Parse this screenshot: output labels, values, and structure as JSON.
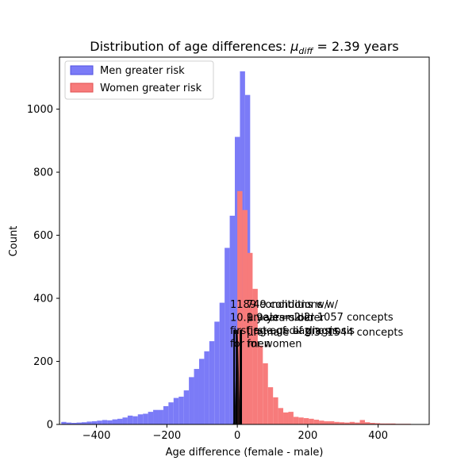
{
  "chart_data": {
    "type": "bar",
    "title_prefix": "Distribution of age differences: ",
    "title_mu": "μ",
    "title_sub": "diff",
    "title_suffix": " = 2.39 years",
    "xlabel": "Age difference (female - male)",
    "ylabel": "Count",
    "xlim": [
      -505,
      545
    ],
    "ylim": [
      0,
      1165
    ],
    "xticks": [
      -400,
      -200,
      0,
      200,
      400
    ],
    "xtick_labels": [
      "−400",
      "−200",
      "0",
      "200",
      "400"
    ],
    "yticks": [
      0,
      200,
      400,
      600,
      800,
      1000
    ],
    "ytick_labels": [
      "0",
      "200",
      "400",
      "600",
      "800",
      "1000"
    ],
    "bin_width": 14.5,
    "grid": false,
    "legend_placement": "upper-left",
    "series": [
      {
        "name": "Men greater risk",
        "color": "#7b7bf7",
        "bins": [
          {
            "x": -500,
            "v": 8
          },
          {
            "x": -485.5,
            "v": 6
          },
          {
            "x": -471,
            "v": 5
          },
          {
            "x": -456.5,
            "v": 6
          },
          {
            "x": -442,
            "v": 7
          },
          {
            "x": -427.5,
            "v": 9
          },
          {
            "x": -413,
            "v": 10
          },
          {
            "x": -398.5,
            "v": 12
          },
          {
            "x": -384,
            "v": 14
          },
          {
            "x": -369.5,
            "v": 13
          },
          {
            "x": -355,
            "v": 16
          },
          {
            "x": -340.5,
            "v": 18
          },
          {
            "x": -326,
            "v": 22
          },
          {
            "x": -311.5,
            "v": 28
          },
          {
            "x": -297,
            "v": 26
          },
          {
            "x": -282.5,
            "v": 32
          },
          {
            "x": -268,
            "v": 34
          },
          {
            "x": -253.5,
            "v": 40
          },
          {
            "x": -239,
            "v": 46
          },
          {
            "x": -224.5,
            "v": 46
          },
          {
            "x": -210,
            "v": 58
          },
          {
            "x": -195.5,
            "v": 70
          },
          {
            "x": -181,
            "v": 84
          },
          {
            "x": -166.5,
            "v": 88
          },
          {
            "x": -152,
            "v": 108
          },
          {
            "x": -137.5,
            "v": 150
          },
          {
            "x": -123,
            "v": 176
          },
          {
            "x": -108.5,
            "v": 208
          },
          {
            "x": -94,
            "v": 232
          },
          {
            "x": -79.5,
            "v": 264
          },
          {
            "x": -65,
            "v": 326
          },
          {
            "x": -50.5,
            "v": 386
          },
          {
            "x": -36,
            "v": 560
          },
          {
            "x": -21.5,
            "v": 662
          },
          {
            "x": -7,
            "v": 912
          },
          {
            "x": 7.5,
            "v": 1120
          },
          {
            "x": 22,
            "v": 1045
          }
        ]
      },
      {
        "name": "Women greater risk",
        "color": "#f77b7b",
        "bins": [
          {
            "x": 0,
            "v": 740
          },
          {
            "x": 14.5,
            "v": 680
          },
          {
            "x": 29,
            "v": 544
          },
          {
            "x": 43.5,
            "v": 430
          },
          {
            "x": 58,
            "v": 250
          },
          {
            "x": 72.5,
            "v": 194
          },
          {
            "x": 87,
            "v": 118
          },
          {
            "x": 101.5,
            "v": 86
          },
          {
            "x": 116,
            "v": 52
          },
          {
            "x": 130.5,
            "v": 38
          },
          {
            "x": 145,
            "v": 40
          },
          {
            "x": 159.5,
            "v": 24
          },
          {
            "x": 174,
            "v": 22
          },
          {
            "x": 188.5,
            "v": 20
          },
          {
            "x": 203,
            "v": 18
          },
          {
            "x": 217.5,
            "v": 15
          },
          {
            "x": 232,
            "v": 12
          },
          {
            "x": 246.5,
            "v": 10
          },
          {
            "x": 261,
            "v": 10
          },
          {
            "x": 275.5,
            "v": 8
          },
          {
            "x": 290,
            "v": 7
          },
          {
            "x": 304.5,
            "v": 6
          },
          {
            "x": 319,
            "v": 8
          },
          {
            "x": 333.5,
            "v": 6
          },
          {
            "x": 348,
            "v": 14
          },
          {
            "x": 362.5,
            "v": 7
          },
          {
            "x": 377,
            "v": 5
          },
          {
            "x": 391.5,
            "v": 4
          },
          {
            "x": 406,
            "v": 3
          },
          {
            "x": 420.5,
            "v": 3
          },
          {
            "x": 435,
            "v": 3
          },
          {
            "x": 449.5,
            "v": 2
          },
          {
            "x": 464,
            "v": 2
          },
          {
            "x": 478.5,
            "v": 2
          }
        ]
      }
    ],
    "annotations": {
      "vlines": [
        -9,
        -2,
        9,
        11
      ],
      "left": [
        "1189 conditions w/",
        "10.1 years older",
        "first age of diagnosis",
        "for men"
      ],
      "right": [
        "749 conditions w/",
        "9.9 years older",
        "first age of diagnosis",
        "for women"
      ],
      "mid": [
        "μmale = 2.2: 1057 concepts",
        "μfemale = 2.3: 1544 concepts"
      ]
    }
  }
}
